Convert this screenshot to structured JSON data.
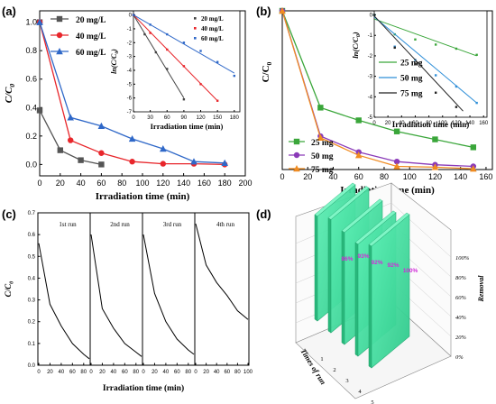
{
  "chart_data": [
    {
      "panel": "(a)",
      "type": "line",
      "xlabel": "Irradiation time (min)",
      "ylabel": "C/C0",
      "xlim": [
        0,
        200
      ],
      "ylim": [
        -0.08,
        1.08
      ],
      "xticks": [
        0,
        20,
        40,
        60,
        80,
        100,
        120,
        140,
        160,
        180,
        200
      ],
      "yticks": [
        0.0,
        0.2,
        0.4,
        0.6,
        0.8,
        1.0
      ],
      "legend_position": "top-left",
      "series": [
        {
          "name": "20 mg/L",
          "color": "#555555",
          "marker": "square",
          "x": [
            0,
            0,
            20,
            40,
            60
          ],
          "y": [
            1.0,
            0.38,
            0.1,
            0.03,
            0.0
          ]
        },
        {
          "name": "40 mg/L",
          "color": "#e8262b",
          "marker": "circle",
          "x": [
            0,
            30,
            60,
            90,
            120,
            150,
            180
          ],
          "y": [
            1.0,
            0.17,
            0.08,
            0.02,
            0.005,
            0.005,
            0.0
          ]
        },
        {
          "name": "60 mg/L",
          "color": "#2f68c8",
          "marker": "triangle",
          "x": [
            0,
            30,
            60,
            90,
            120,
            150,
            180
          ],
          "y": [
            1.0,
            0.33,
            0.27,
            0.18,
            0.11,
            0.02,
            0.01
          ]
        }
      ],
      "inset": {
        "type": "scatter",
        "xlabel": "Irradiation time (min)",
        "ylabel": "ln(C/C0)",
        "xlim": [
          0,
          190
        ],
        "ylim": [
          -7,
          0.3
        ],
        "xticks": [
          0,
          30,
          60,
          90,
          120,
          150,
          180
        ],
        "yticks": [
          0,
          -1,
          -2,
          -3,
          -4,
          -5,
          -6,
          -7
        ],
        "legend_position": "top-right",
        "series": [
          {
            "name": "20 mg/L",
            "color": "#444444",
            "x": [
              0,
              20,
              40,
              60,
              90
            ],
            "y": [
              0,
              -1.4,
              -2.7,
              -3.9,
              -6.1
            ],
            "fit": {
              "x": [
                0,
                90
              ],
              "y": [
                0,
                -6.0
              ]
            }
          },
          {
            "name": "40 mg/L",
            "color": "#e8262b",
            "x": [
              0,
              30,
              60,
              90,
              120,
              150
            ],
            "y": [
              0,
              -1.3,
              -2.5,
              -3.7,
              -5.0,
              -6.2
            ],
            "fit": {
              "x": [
                0,
                150
              ],
              "y": [
                0,
                -6.2
              ]
            }
          },
          {
            "name": "60 mg/L",
            "color": "#2f68c8",
            "x": [
              0,
              30,
              60,
              90,
              120,
              150,
              180
            ],
            "y": [
              0,
              -0.7,
              -1.4,
              -2.0,
              -2.6,
              -3.4,
              -4.4
            ],
            "fit": {
              "x": [
                0,
                180
              ],
              "y": [
                0,
                -4.2
              ]
            }
          }
        ]
      }
    },
    {
      "panel": "(b)",
      "type": "line",
      "xlabel": "Irradiation time (min)",
      "ylabel": "C/C0",
      "xlim": [
        0,
        165
      ],
      "ylim": [
        0,
        1.0
      ],
      "xticks": [
        0,
        20,
        40,
        60,
        80,
        100,
        120,
        140,
        160
      ],
      "legend_position": "bottom-left",
      "series": [
        {
          "name": "25 mg",
          "color": "#3aa63a",
          "marker": "square",
          "x": [
            0,
            30,
            60,
            90,
            120,
            150
          ],
          "y": [
            1.0,
            0.39,
            0.31,
            0.24,
            0.19,
            0.14
          ]
        },
        {
          "name": "50 mg",
          "color": "#8a3ab8",
          "marker": "circle",
          "x": [
            0,
            30,
            60,
            90,
            120,
            150
          ],
          "y": [
            1.0,
            0.21,
            0.11,
            0.05,
            0.03,
            0.02
          ]
        },
        {
          "name": "75 mg",
          "color": "#f08c22",
          "marker": "triangle",
          "x": [
            0,
            30,
            60,
            90,
            120,
            150
          ],
          "y": [
            1.0,
            0.2,
            0.09,
            0.02,
            0.015,
            0.005
          ]
        }
      ],
      "inset": {
        "type": "scatter",
        "xlabel": "Irradiation time (min)",
        "ylabel": "ln(C/C0)",
        "xlim": [
          0,
          165
        ],
        "ylim": [
          -5,
          0.2
        ],
        "xticks": [
          0,
          20,
          40,
          60,
          80,
          100,
          120,
          140,
          160
        ],
        "yticks": [
          0,
          -1,
          -2,
          -3,
          -4,
          -5
        ],
        "legend_position": "bottom-left",
        "series": [
          {
            "name": "25 mg",
            "color": "#3aa63a",
            "x": [
              0,
              30,
              60,
              90,
              120,
              150
            ],
            "y": [
              0,
              -0.95,
              -1.2,
              -1.45,
              -1.65,
              -1.95
            ],
            "fit": {
              "x": [
                0,
                150
              ],
              "y": [
                -0.2,
                -2.0
              ]
            }
          },
          {
            "name": "50 mg",
            "color": "#2f8fd8",
            "x": [
              0,
              30,
              60,
              90,
              120,
              150
            ],
            "y": [
              0,
              -1.55,
              -2.2,
              -2.95,
              -3.5,
              -4.3
            ],
            "fit": {
              "x": [
                0,
                150
              ],
              "y": [
                -0.1,
                -4.3
              ]
            }
          },
          {
            "name": "75 mg",
            "color": "#222222",
            "x": [
              0,
              30,
              60,
              90,
              120
            ],
            "y": [
              0,
              -1.6,
              -2.4,
              -3.8,
              -4.5
            ],
            "fit": {
              "x": [
                0,
                130
              ],
              "y": [
                -0.05,
                -4.7
              ]
            }
          }
        ]
      }
    },
    {
      "panel": "(c)",
      "type": "line",
      "xlabel": "Irradiation time (min)",
      "ylabel": "C/C0",
      "ylim": [
        0,
        0.7
      ],
      "yticks": [
        0.0,
        0.1,
        0.2,
        0.3,
        0.4,
        0.5,
        0.6,
        0.7
      ],
      "runs": [
        {
          "name": "1st run",
          "xticks": [
            0,
            20,
            40,
            60,
            80
          ],
          "x": [
            0,
            20,
            40,
            60,
            80,
            90
          ],
          "y": [
            0.56,
            0.28,
            0.18,
            0.1,
            0.05,
            0.03
          ]
        },
        {
          "name": "2nd run",
          "xticks": [
            0,
            20,
            40,
            60,
            80
          ],
          "x": [
            0,
            20,
            40,
            60,
            80,
            90
          ],
          "y": [
            0.6,
            0.26,
            0.17,
            0.1,
            0.06,
            0.04
          ]
        },
        {
          "name": "3rd run",
          "xticks": [
            0,
            20,
            40,
            60,
            80
          ],
          "x": [
            0,
            20,
            40,
            60,
            80,
            90
          ],
          "y": [
            0.6,
            0.33,
            0.2,
            0.12,
            0.07,
            0.05
          ]
        },
        {
          "name": "4th run",
          "xticks": [
            0,
            20,
            40,
            60,
            80,
            100
          ],
          "x": [
            0,
            20,
            40,
            60,
            80,
            100
          ],
          "y": [
            0.65,
            0.46,
            0.38,
            0.32,
            0.25,
            0.21
          ]
        }
      ]
    },
    {
      "panel": "(d)",
      "type": "bar",
      "xlabel": "Times of run",
      "zlabel": "Removal",
      "xticks": [
        "1",
        "2",
        "3",
        "4",
        "5"
      ],
      "zticks": [
        "0%",
        "20%",
        "40%",
        "60%",
        "80%",
        "100%"
      ],
      "bar_color": "#3ddc9a",
      "label_color": "#d12bd8",
      "values": [
        86,
        93,
        92,
        92,
        100
      ],
      "value_labels": [
        "86%",
        "93%",
        "92%",
        "92%",
        "100%"
      ]
    }
  ]
}
